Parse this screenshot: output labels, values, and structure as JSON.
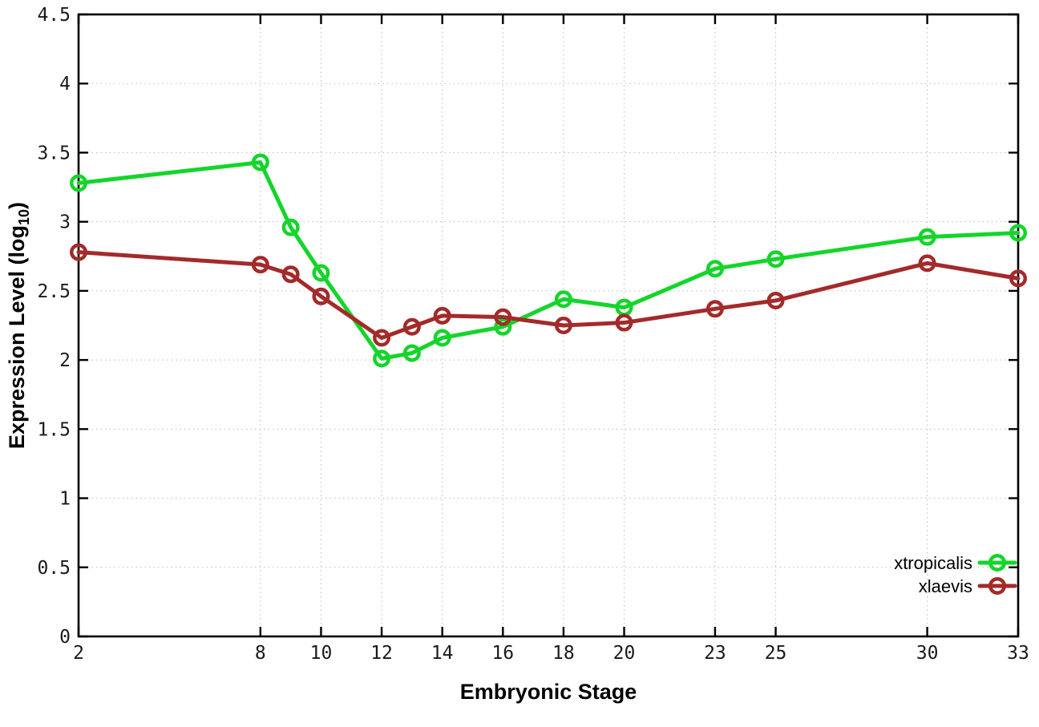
{
  "chart_data": {
    "type": "line",
    "title": "",
    "xlabel": "Embryonic Stage",
    "ylabel": "Expression Level (log10)",
    "ylabel_prefix": "Expression Level (log",
    "ylabel_sub": "10",
    "ylabel_suffix": ")",
    "xlim": [
      2,
      33
    ],
    "ylim": [
      0,
      4.5
    ],
    "grid": true,
    "legend_position": "bottom-right-inside",
    "marker": "open-circle",
    "background_color": "#ffffff",
    "grid_color": "#bbbbbb",
    "axis_color": "#000000",
    "x": [
      2,
      8,
      9,
      10,
      12,
      13,
      14,
      16,
      18,
      20,
      23,
      25,
      30,
      33
    ],
    "xticks": [
      2,
      8,
      10,
      12,
      14,
      16,
      18,
      20,
      23,
      25,
      30,
      33
    ],
    "xtick_labels": [
      "2",
      "8",
      "10",
      "12",
      "14",
      "16",
      "18",
      "20",
      "23",
      "25",
      "30",
      "33"
    ],
    "yticks": [
      0,
      0.5,
      1,
      1.5,
      2,
      2.5,
      3,
      3.5,
      4,
      4.5
    ],
    "ytick_labels": [
      "0",
      "0.5",
      "1",
      "1.5",
      "2",
      "2.5",
      "3",
      "3.5",
      "4",
      "4.5"
    ],
    "series": [
      {
        "name": "xtropicalis",
        "color": "#14d52a",
        "values": [
          3.28,
          3.43,
          2.96,
          2.63,
          2.01,
          2.05,
          2.16,
          2.24,
          2.44,
          2.38,
          2.66,
          2.73,
          2.89,
          2.92
        ]
      },
      {
        "name": "xlaevis",
        "color": "#a42a2a",
        "values": [
          2.78,
          2.69,
          2.62,
          2.46,
          2.16,
          2.24,
          2.32,
          2.31,
          2.25,
          2.27,
          2.37,
          2.43,
          2.7,
          2.59
        ]
      }
    ]
  }
}
